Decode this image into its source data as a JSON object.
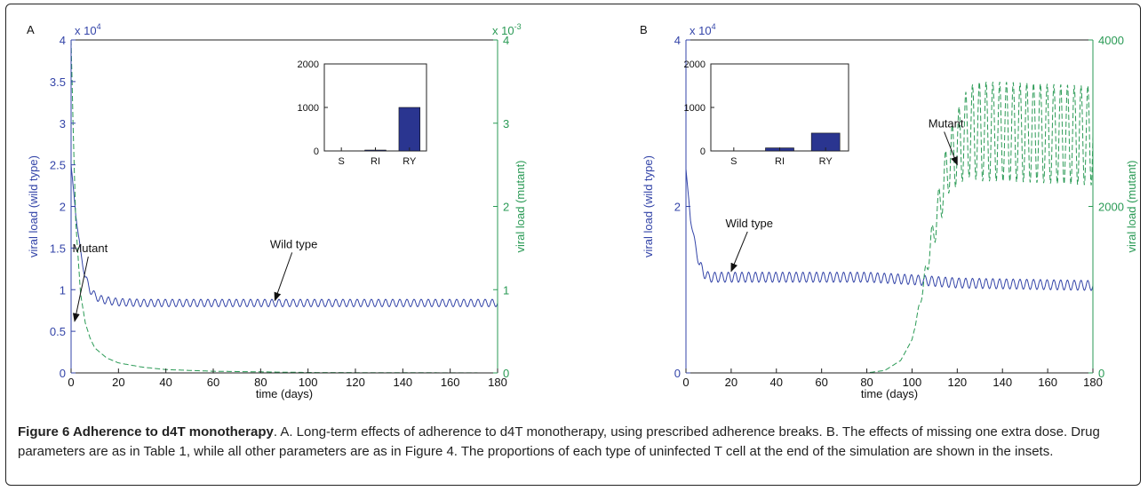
{
  "chart_data": [
    {
      "type": "line",
      "panel_label": "A",
      "xlabel": "time (days)",
      "ylabel_left": "viral load (wild type)",
      "ylabel_right": "viral load (mutant)",
      "xlim": [
        0,
        180
      ],
      "ylim_left": [
        0,
        4
      ],
      "ylim_right": [
        0,
        4
      ],
      "left_exponent": "x 10",
      "left_exponent_power": "4",
      "right_exponent": "x 10",
      "right_exponent_power": "-3",
      "x_ticks": [
        "0",
        "20",
        "40",
        "60",
        "80",
        "100",
        "120",
        "140",
        "160",
        "180"
      ],
      "y_ticks_left": [
        "0",
        "0.5",
        "1",
        "1.5",
        "2",
        "2.5",
        "3",
        "3.5",
        "4"
      ],
      "y_ticks_right": [
        "0",
        "1",
        "2",
        "3",
        "4"
      ],
      "series": [
        {
          "name": "Wild type",
          "axis": "left",
          "style": "solid",
          "color": "#3344a8",
          "x": [
            0,
            2,
            4,
            6,
            8,
            10,
            12,
            15,
            20,
            30,
            180
          ],
          "y": [
            2.5,
            1.9,
            1.45,
            1.15,
            1.0,
            0.93,
            0.89,
            0.87,
            0.85,
            0.84,
            0.84
          ],
          "oscillation_amplitude": 0.045,
          "oscillation_period": 3
        },
        {
          "name": "Mutant",
          "axis": "right",
          "style": "dashed",
          "color": "#2a9a55",
          "x": [
            0,
            1,
            2,
            4,
            6,
            8,
            10,
            15,
            20,
            30,
            40,
            60,
            100,
            180
          ],
          "y": [
            4.0,
            2.8,
            1.8,
            0.95,
            0.6,
            0.42,
            0.3,
            0.18,
            0.12,
            0.07,
            0.04,
            0.02,
            0.005,
            0.0
          ]
        }
      ],
      "annotations": [
        {
          "text": "Mutant",
          "x": 8,
          "y": 1.45,
          "arrow_to_x": 1.5,
          "arrow_to_y": 0.62
        },
        {
          "text": "Wild type",
          "x": 94,
          "y": 1.5,
          "arrow_to_x": 86,
          "arrow_to_y": 0.87
        }
      ],
      "inset": {
        "type": "bar",
        "categories": [
          "S",
          "RI",
          "RY"
        ],
        "values": [
          0,
          20,
          1000
        ],
        "ylim": [
          0,
          2000
        ],
        "y_ticks": [
          "0",
          "1000",
          "2000"
        ],
        "color": "#2a3590"
      }
    },
    {
      "type": "line",
      "panel_label": "B",
      "xlabel": "time (days)",
      "ylabel_left": "viral load (wild type)",
      "ylabel_right": "viral load (mutant)",
      "xlim": [
        0,
        180
      ],
      "ylim_left": [
        0,
        4
      ],
      "ylim_right": [
        0,
        4000
      ],
      "left_exponent": "x 10",
      "left_exponent_power": "4",
      "x_ticks": [
        "0",
        "20",
        "40",
        "60",
        "80",
        "100",
        "120",
        "140",
        "160",
        "180"
      ],
      "y_ticks_left": [
        "0",
        "2",
        "4"
      ],
      "y_ticks_right": [
        "0",
        "2000",
        "4000"
      ],
      "series": [
        {
          "name": "Wild type",
          "axis": "left",
          "style": "solid",
          "color": "#3344a8",
          "x": [
            0,
            2,
            4,
            6,
            8,
            10,
            20,
            80,
            100,
            120,
            180
          ],
          "y": [
            2.45,
            1.85,
            1.55,
            1.3,
            1.2,
            1.15,
            1.15,
            1.15,
            1.12,
            1.08,
            1.05
          ],
          "oscillation_amplitude": 0.06,
          "oscillation_period": 3
        },
        {
          "name": "Mutant",
          "axis": "right",
          "style": "dashed",
          "color": "#2a9a55",
          "x": [
            0,
            80,
            88,
            95,
            100,
            104,
            108,
            112,
            116,
            120,
            125,
            130,
            135,
            140,
            180
          ],
          "y": [
            0,
            0,
            30,
            150,
            400,
            900,
            1500,
            2000,
            2500,
            2700,
            2900,
            2900,
            2900,
            2900,
            2850
          ],
          "oscillation_amplitude": [
            0,
            0,
            0,
            0,
            0,
            50,
            150,
            250,
            350,
            450,
            550,
            600,
            600,
            600,
            600
          ],
          "oscillation_period": 3
        }
      ],
      "annotations": [
        {
          "text": "Mutant",
          "x": 115,
          "y": 2.95,
          "arrow_to_x": 120,
          "arrow_to_y": 2.5
        },
        {
          "text": "Wild type",
          "x": 28,
          "y": 1.75,
          "arrow_to_x": 20,
          "arrow_to_y": 1.22
        }
      ],
      "inset": {
        "type": "bar",
        "categories": [
          "S",
          "RI",
          "RY"
        ],
        "values": [
          0,
          70,
          410
        ],
        "ylim": [
          0,
          2000
        ],
        "y_ticks": [
          "0",
          "1000",
          "2000"
        ],
        "color": "#2a3590"
      }
    }
  ],
  "caption": {
    "figure_label": "Figure 6 Adherence to d4T monotherapy",
    "text": ". A. Long-term effects of adherence to d4T monotherapy, using prescribed adherence breaks. B. The effects of missing one extra dose. Drug parameters are as in Table 1, while all other parameters are as in Figure 4. The proportions of each type of uninfected T cell at the end of the simulation are shown in the insets."
  },
  "colors": {
    "wild_type": "#3344a8",
    "mutant": "#2a9a55",
    "bars": "#2a3590",
    "axis": "#222222"
  }
}
